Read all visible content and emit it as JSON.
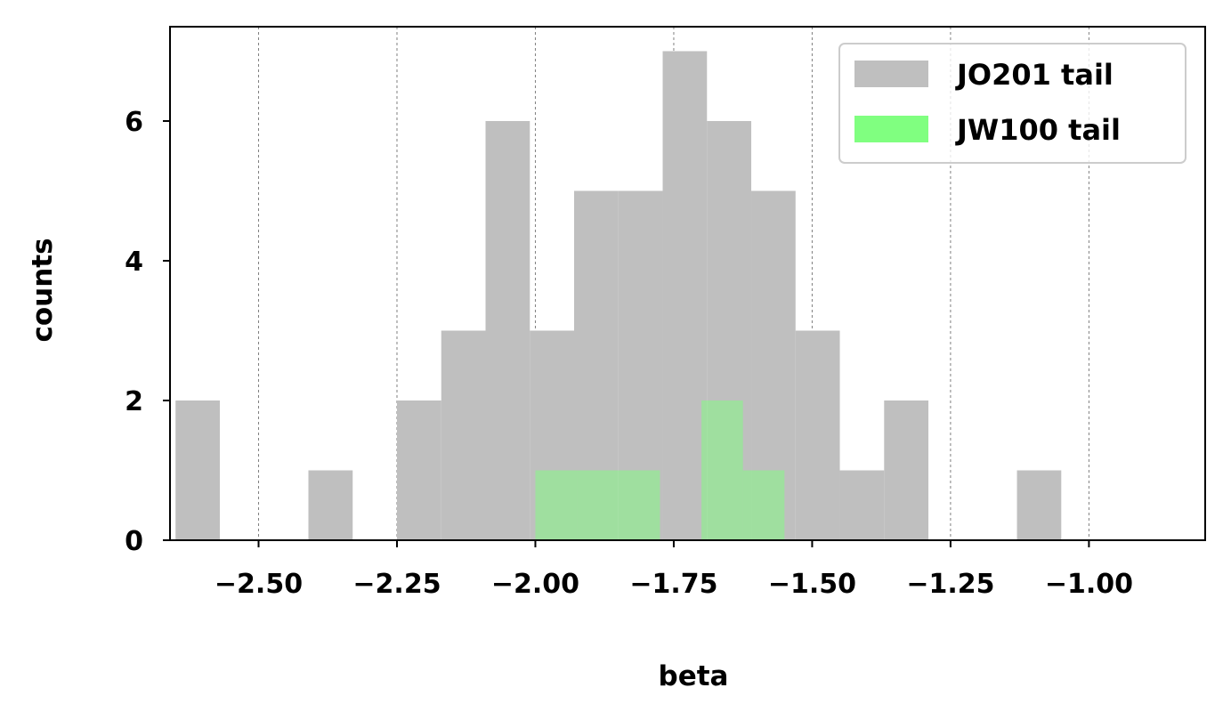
{
  "chart_data": {
    "type": "bar",
    "subtype": "histogram",
    "xlabel": "beta",
    "ylabel": "counts",
    "xlim": [
      -2.66,
      -0.79
    ],
    "ylim": [
      0,
      7.35
    ],
    "grid": "vertical dashed at x ticks",
    "legend_position": "top-right",
    "x_ticks": [
      -2.5,
      -2.25,
      -2.0,
      -1.75,
      -1.5,
      -1.25,
      -1.0
    ],
    "x_tick_labels": [
      "−2.50",
      "−2.25",
      "−2.00",
      "−1.75",
      "−1.50",
      "−1.25",
      "−1.00"
    ],
    "y_ticks": [
      0,
      2,
      4,
      6
    ],
    "y_tick_labels": [
      "0",
      "2",
      "4",
      "6"
    ],
    "series": [
      {
        "name": "JO201 tail",
        "color": "#bfbfbf",
        "bin_edges": [
          -2.65,
          -2.57,
          -2.49,
          -2.41,
          -2.33,
          -2.25,
          -2.17,
          -2.09,
          -2.01,
          -1.93,
          -1.85,
          -1.77,
          -1.69,
          -1.61,
          -1.53,
          -1.45,
          -1.37,
          -1.29,
          -1.21,
          -1.13,
          -1.05
        ],
        "counts": [
          2,
          0,
          0,
          1,
          0,
          2,
          3,
          6,
          3,
          5,
          5,
          7,
          6,
          5,
          3,
          1,
          2,
          0,
          0,
          1
        ]
      },
      {
        "name": "JW100 tail",
        "color": "#80ff80",
        "opacity": 0.5,
        "bin_edges": [
          -2.0,
          -1.925,
          -1.85,
          -1.775,
          -1.7,
          -1.625,
          -1.55
        ],
        "counts": [
          1,
          1,
          1,
          0,
          2,
          1
        ]
      }
    ]
  }
}
